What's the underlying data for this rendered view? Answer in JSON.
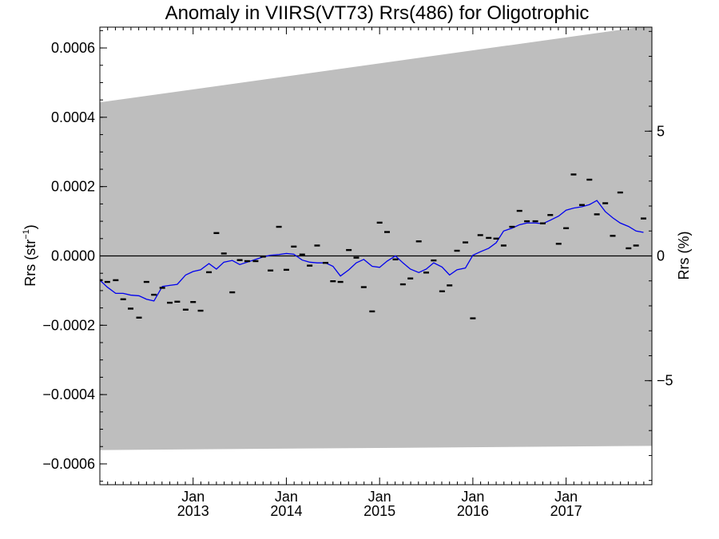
{
  "chart_data": {
    "type": "scatter",
    "title": "Anomaly in VIIRS(VT73) Rrs(486) for Oligotrophic",
    "ylabel_base": "Rrs (str",
    "ylabel_sup": "−1",
    "ylabel_close": ")",
    "y2label": "Rrs (%)",
    "xlim": [
      2012.0,
      2017.92
    ],
    "ylim": [
      -0.00066,
      0.00066
    ],
    "y2lim": [
      -9.17,
      9.17
    ],
    "y_ticks": [
      {
        "value": 0.0006,
        "label": "0.0006"
      },
      {
        "value": 0.0004,
        "label": "0.0004"
      },
      {
        "value": 0.0002,
        "label": "0.0002"
      },
      {
        "value": 0.0,
        "label": "0.0000"
      },
      {
        "value": -0.0002,
        "label": "−0.0002"
      },
      {
        "value": -0.0004,
        "label": "−0.0004"
      },
      {
        "value": -0.0006,
        "label": "−0.0006"
      }
    ],
    "y2_ticks": [
      {
        "value": 5,
        "label": "5"
      },
      {
        "value": 0,
        "label": "0"
      },
      {
        "value": -5,
        "label": "−5"
      }
    ],
    "x_ticks": [
      {
        "value": 2013.0,
        "month": "Jan",
        "year": "2013"
      },
      {
        "value": 2014.0,
        "month": "Jan",
        "year": "2014"
      },
      {
        "value": 2015.0,
        "month": "Jan",
        "year": "2015"
      },
      {
        "value": 2016.0,
        "month": "Jan",
        "year": "2016"
      },
      {
        "value": 2017.0,
        "month": "Jan",
        "year": "2017"
      }
    ],
    "envelope": {
      "upper": [
        [
          2012.0,
          0.000443
        ],
        [
          2017.92,
          0.000665
        ]
      ],
      "lower": [
        [
          2012.0,
          -0.00056
        ],
        [
          2017.92,
          -0.000548
        ]
      ]
    },
    "points": [
      [
        2012.0,
        -7e-05
      ],
      [
        2012.08,
        -7.5e-05
      ],
      [
        2012.17,
        -7e-05
      ],
      [
        2012.25,
        -0.000125
      ],
      [
        2012.33,
        -0.000152
      ],
      [
        2012.42,
        -0.000178
      ],
      [
        2012.5,
        -7.5e-05
      ],
      [
        2012.58,
        -0.000112
      ],
      [
        2012.67,
        -9.2e-05
      ],
      [
        2012.75,
        -0.000135
      ],
      [
        2012.83,
        -0.000132
      ],
      [
        2012.92,
        -0.000155
      ],
      [
        2013.0,
        -0.000133
      ],
      [
        2013.08,
        -0.000158
      ],
      [
        2013.17,
        -4.7e-05
      ],
      [
        2013.25,
        6.6e-05
      ],
      [
        2013.33,
        7e-06
      ],
      [
        2013.42,
        -0.000105
      ],
      [
        2013.5,
        -1.2e-05
      ],
      [
        2013.58,
        -1.5e-05
      ],
      [
        2013.67,
        -1.5e-05
      ],
      [
        2013.75,
        -2e-06
      ],
      [
        2013.83,
        -4.2e-05
      ],
      [
        2013.92,
        8.4e-05
      ],
      [
        2014.0,
        -4e-05
      ],
      [
        2014.08,
        2.7e-05
      ],
      [
        2014.17,
        4e-06
      ],
      [
        2014.25,
        -2.8e-05
      ],
      [
        2014.33,
        3e-05
      ],
      [
        2014.42,
        -2e-05
      ],
      [
        2014.5,
        -7.3e-05
      ],
      [
        2014.58,
        -7.5e-05
      ],
      [
        2014.67,
        1.7e-05
      ],
      [
        2014.75,
        -5e-06
      ],
      [
        2014.83,
        -9e-05
      ],
      [
        2014.92,
        -0.00016
      ],
      [
        2015.0,
        9.6e-05
      ],
      [
        2015.08,
        6.9e-05
      ],
      [
        2015.17,
        -1e-05
      ],
      [
        2015.25,
        -8.2e-05
      ],
      [
        2015.33,
        -6.5e-05
      ],
      [
        2015.42,
        4.2e-05
      ],
      [
        2015.5,
        -4.8e-05
      ],
      [
        2015.58,
        -1.3e-05
      ],
      [
        2015.67,
        -0.000102
      ],
      [
        2015.75,
        -8.5e-05
      ],
      [
        2015.83,
        1.5e-05
      ],
      [
        2015.92,
        3.9e-05
      ],
      [
        2016.0,
        -0.00018
      ],
      [
        2016.08,
        6e-05
      ],
      [
        2016.17,
        5.2e-05
      ],
      [
        2016.25,
        5e-05
      ],
      [
        2016.33,
        3e-05
      ],
      [
        2016.42,
        8.4e-05
      ],
      [
        2016.5,
        0.00013
      ],
      [
        2016.58,
        0.0001
      ],
      [
        2016.67,
        0.0001
      ],
      [
        2016.75,
        9.4e-05
      ],
      [
        2016.83,
        0.000118
      ],
      [
        2016.92,
        3.5e-05
      ],
      [
        2017.0,
        8e-05
      ],
      [
        2017.08,
        0.000235
      ],
      [
        2017.17,
        0.000147
      ],
      [
        2017.25,
        0.00022
      ],
      [
        2017.33,
        0.00012
      ],
      [
        2017.42,
        0.000152
      ],
      [
        2017.5,
        5.8e-05
      ],
      [
        2017.58,
        0.000183
      ],
      [
        2017.67,
        2.2e-05
      ],
      [
        2017.75,
        3e-05
      ],
      [
        2017.83,
        0.000108
      ]
    ],
    "trend": [
      [
        2012.0,
        -7e-05
      ],
      [
        2012.08,
        -9e-05
      ],
      [
        2012.17,
        -0.000108
      ],
      [
        2012.25,
        -0.000108
      ],
      [
        2012.33,
        -0.000113
      ],
      [
        2012.42,
        -0.000115
      ],
      [
        2012.5,
        -0.000125
      ],
      [
        2012.58,
        -0.00013
      ],
      [
        2012.67,
        -8.8e-05
      ],
      [
        2012.75,
        -8.5e-05
      ],
      [
        2012.83,
        -8.2e-05
      ],
      [
        2012.92,
        -5.5e-05
      ],
      [
        2013.0,
        -4.5e-05
      ],
      [
        2013.08,
        -4e-05
      ],
      [
        2013.17,
        -2.2e-05
      ],
      [
        2013.25,
        -3.8e-05
      ],
      [
        2013.33,
        -1.8e-05
      ],
      [
        2013.42,
        -1.3e-05
      ],
      [
        2013.5,
        -2.5e-05
      ],
      [
        2013.58,
        -1.8e-05
      ],
      [
        2013.67,
        -1e-05
      ],
      [
        2013.75,
        -3e-06
      ],
      [
        2013.83,
        2e-06
      ],
      [
        2013.92,
        4e-06
      ],
      [
        2014.0,
        7e-06
      ],
      [
        2014.08,
        5e-06
      ],
      [
        2014.17,
        -1.2e-05
      ],
      [
        2014.25,
        -1.8e-05
      ],
      [
        2014.33,
        -2e-05
      ],
      [
        2014.42,
        -2e-05
      ],
      [
        2014.5,
        -3e-05
      ],
      [
        2014.58,
        -5.8e-05
      ],
      [
        2014.67,
        -4e-05
      ],
      [
        2014.75,
        -2e-05
      ],
      [
        2014.83,
        -1e-05
      ],
      [
        2014.92,
        -3e-05
      ],
      [
        2015.0,
        -3.3e-05
      ],
      [
        2015.08,
        -1.5e-05
      ],
      [
        2015.17,
        0.0
      ],
      [
        2015.25,
        -2e-05
      ],
      [
        2015.33,
        -3.8e-05
      ],
      [
        2015.42,
        -4.8e-05
      ],
      [
        2015.5,
        -3.8e-05
      ],
      [
        2015.58,
        -2e-05
      ],
      [
        2015.67,
        -3.2e-05
      ],
      [
        2015.75,
        -5.5e-05
      ],
      [
        2015.83,
        -4e-05
      ],
      [
        2015.92,
        -3.5e-05
      ],
      [
        2016.0,
        2e-06
      ],
      [
        2016.08,
        1.2e-05
      ],
      [
        2016.17,
        2.2e-05
      ],
      [
        2016.25,
        3.8e-05
      ],
      [
        2016.33,
        7.2e-05
      ],
      [
        2016.42,
        8e-05
      ],
      [
        2016.5,
        9e-05
      ],
      [
        2016.58,
        9.5e-05
      ],
      [
        2016.67,
        9.5e-05
      ],
      [
        2016.75,
        9.3e-05
      ],
      [
        2016.83,
        0.000103
      ],
      [
        2016.92,
        0.000115
      ],
      [
        2017.0,
        0.000132
      ],
      [
        2017.08,
        0.000138
      ],
      [
        2017.17,
        0.000142
      ],
      [
        2017.25,
        0.000148
      ],
      [
        2017.33,
        0.00016
      ],
      [
        2017.42,
        0.000128
      ],
      [
        2017.5,
        0.00011
      ],
      [
        2017.58,
        9.5e-05
      ],
      [
        2017.67,
        8.5e-05
      ],
      [
        2017.75,
        7.2e-05
      ],
      [
        2017.83,
        6.8e-05
      ]
    ],
    "colors": {
      "envelope": "#bebebe",
      "trend": "#0000ee",
      "points": "#000000",
      "zero_line": "#000000",
      "axes": "#000000"
    },
    "grid": false,
    "legend": "none"
  }
}
